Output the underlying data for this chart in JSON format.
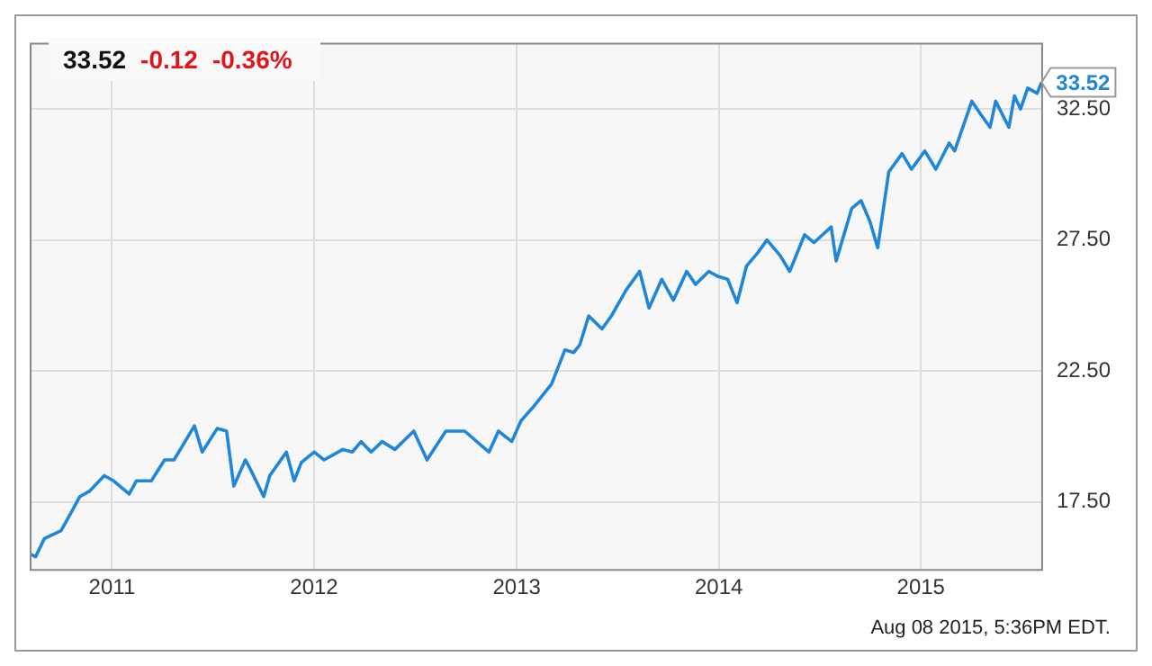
{
  "chart_data": {
    "type": "line",
    "title": "33.52",
    "annotations": [
      "-0.12",
      "-0.36%",
      {
        "text": "33.52",
        "x": "2015-08-07",
        "y": 33.52
      },
      "Aug 08 2015, 5:36PM EDT."
    ],
    "x": [
      "2010-08-07",
      "2010-08-16",
      "2010-09-01",
      "2010-10-01",
      "2010-10-22",
      "2010-11-04",
      "2010-11-21",
      "2010-12-18",
      "2011-01-04",
      "2011-02-01",
      "2011-02-14",
      "2011-03-13",
      "2011-04-06",
      "2011-04-23",
      "2011-05-30",
      "2011-06-13",
      "2011-07-10",
      "2011-07-27",
      "2011-08-09",
      "2011-08-30",
      "2011-09-09",
      "2011-10-02",
      "2011-10-13",
      "2011-11-12",
      "2011-11-26",
      "2011-12-09",
      "2012-01-01",
      "2012-01-19",
      "2012-02-22",
      "2012-03-10",
      "2012-03-26",
      "2012-04-13",
      "2012-05-03",
      "2012-05-26",
      "2012-06-29",
      "2012-07-23",
      "2012-08-26",
      "2012-09-29",
      "2012-11-12",
      "2012-11-29",
      "2012-12-23",
      "2013-01-09",
      "2013-01-30",
      "2013-03-05",
      "2013-03-29",
      "2013-04-14",
      "2013-04-25",
      "2013-05-11",
      "2013-06-04",
      "2013-06-21",
      "2013-07-18",
      "2013-08-11",
      "2013-08-28",
      "2013-09-20",
      "2013-10-11",
      "2013-11-04",
      "2013-11-20",
      "2013-12-14",
      "2013-12-31",
      "2014-01-17",
      "2014-02-03",
      "2014-02-20",
      "2014-03-12",
      "2014-03-29",
      "2014-04-22",
      "2014-05-09",
      "2014-06-05",
      "2014-06-22",
      "2014-07-23",
      "2014-08-01",
      "2014-08-29",
      "2014-09-15",
      "2014-10-01",
      "2014-10-15",
      "2014-11-04",
      "2014-11-28",
      "2014-12-15",
      "2015-01-08",
      "2015-01-28",
      "2015-02-21",
      "2015-03-03",
      "2015-04-03",
      "2015-04-19",
      "2015-05-06",
      "2015-05-16",
      "2015-06-09",
      "2015-06-19",
      "2015-06-30",
      "2015-07-13",
      "2015-07-30",
      "2015-08-07"
    ],
    "series": [
      {
        "color": "#1f86d9",
        "values": [
          15.5,
          15.4,
          16.1,
          16.4,
          17.2,
          17.7,
          17.9,
          18.5,
          18.3,
          17.8,
          18.3,
          18.3,
          19.1,
          19.1,
          20.4,
          19.4,
          20.3,
          20.2,
          18.1,
          19.1,
          18.7,
          17.7,
          18.5,
          19.4,
          18.3,
          19.0,
          19.4,
          19.1,
          19.5,
          19.4,
          19.8,
          19.4,
          19.8,
          19.5,
          20.2,
          19.1,
          20.2,
          20.2,
          19.4,
          20.2,
          19.8,
          20.6,
          21.1,
          22.0,
          23.3,
          23.2,
          23.5,
          24.6,
          24.1,
          24.6,
          25.6,
          26.3,
          24.9,
          26.0,
          25.2,
          26.3,
          25.8,
          26.3,
          26.1,
          26.0,
          25.1,
          26.5,
          27.0,
          27.5,
          26.9,
          26.3,
          27.7,
          27.4,
          28.0,
          26.7,
          28.7,
          29.0,
          28.2,
          27.2,
          30.1,
          30.8,
          30.2,
          30.9,
          30.2,
          31.2,
          30.9,
          32.8,
          32.3,
          31.8,
          32.8,
          31.8,
          33.0,
          32.5,
          33.3,
          33.1,
          33.52
        ]
      }
    ],
    "xlim": [
      "2010-08-07",
      "2015-08-08"
    ],
    "xticks": [
      "2011",
      "2012",
      "2013",
      "2014",
      "2015"
    ],
    "ylim": [
      14.9,
      35.0
    ],
    "yticks": [
      {
        "value": 17.5,
        "label": "17.50"
      },
      {
        "value": 22.5,
        "label": "22.50"
      },
      {
        "value": 27.5,
        "label": "27.50"
      },
      {
        "value": 32.5,
        "label": "32.50"
      }
    ],
    "grid": true,
    "marker": "none",
    "line_style": "solid"
  }
}
